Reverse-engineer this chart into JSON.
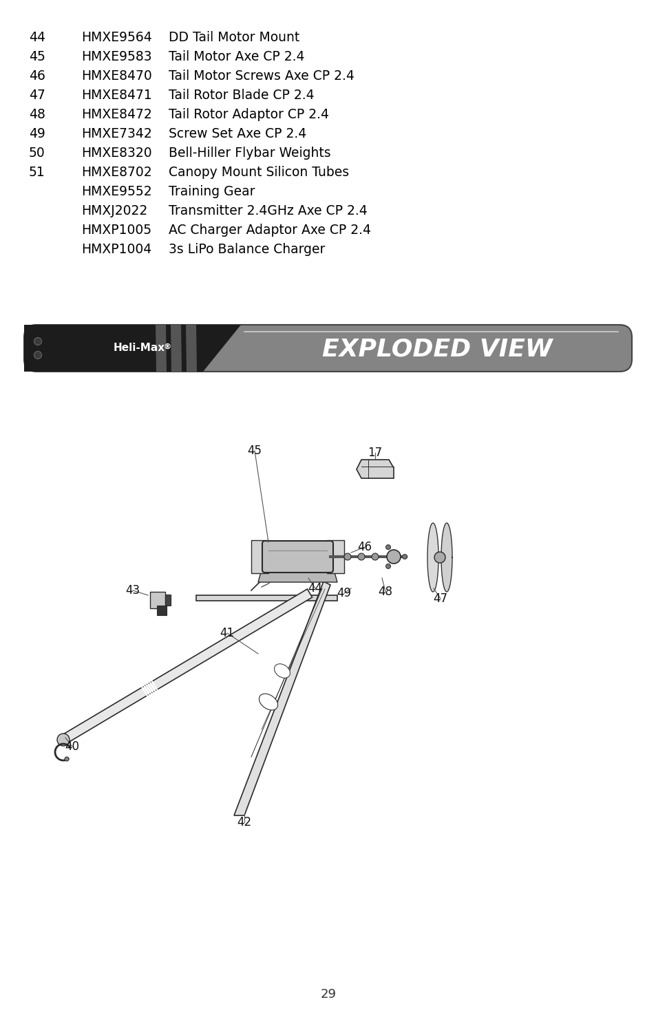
{
  "bg_color": "#ffffff",
  "parts_list": [
    {
      "num": "44",
      "code": "HMXE9564",
      "desc": "DD Tail Motor Mount"
    },
    {
      "num": "45",
      "code": "HMXE9583",
      "desc": "Tail Motor Axe CP 2.4"
    },
    {
      "num": "46",
      "code": "HMXE8470",
      "desc": "Tail Motor Screws Axe CP 2.4"
    },
    {
      "num": "47",
      "code": "HMXE8471",
      "desc": "Tail Rotor Blade CP 2.4"
    },
    {
      "num": "48",
      "code": "HMXE8472",
      "desc": "Tail Rotor Adaptor CP 2.4"
    },
    {
      "num": "49",
      "code": "HMXE7342",
      "desc": "Screw Set Axe CP 2.4"
    },
    {
      "num": "50",
      "code": "HMXE8320",
      "desc": "Bell-Hiller Flybar Weights"
    },
    {
      "num": "51",
      "code": "HMXE8702",
      "desc": "Canopy Mount Silicon Tubes"
    },
    {
      "num": "",
      "code": "HMXE9552",
      "desc": "Training Gear"
    },
    {
      "num": "",
      "code": "HMXJ2022",
      "desc": "Transmitter 2.4GHz Axe CP 2.4"
    },
    {
      "num": "",
      "code": "HMXP1005",
      "desc": "AC Charger Adaptor Axe CP 2.4"
    },
    {
      "num": "",
      "code": "HMXP1004",
      "desc": "3s LiPo Balance Charger"
    }
  ],
  "banner_brand": "Heli-Max",
  "banner_reg": "®",
  "exploded_text": "EXPLODED VIEW",
  "page_number": "29",
  "text_color": "#000000",
  "label_color": "#111111"
}
